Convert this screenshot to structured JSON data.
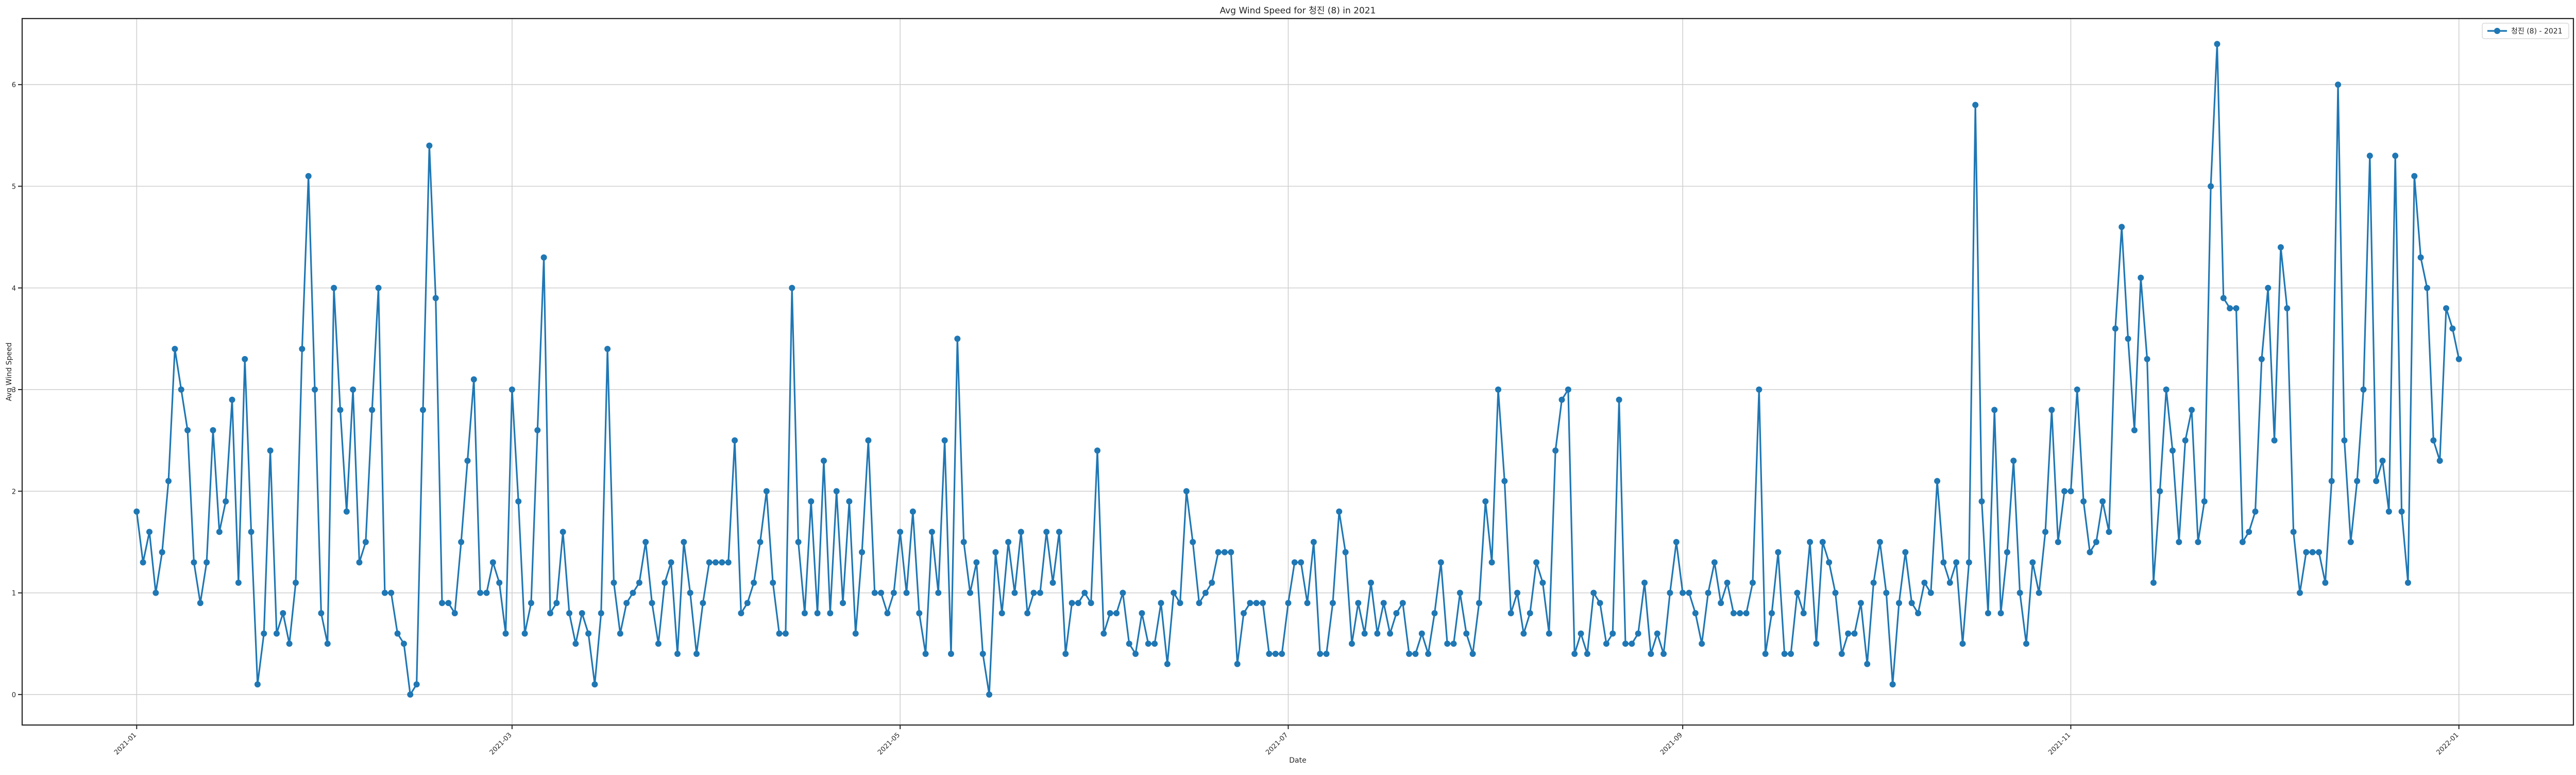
{
  "chart_data": {
    "type": "line",
    "title": "Avg Wind Speed for 청진 (8) in 2021",
    "xlabel": "Date",
    "ylabel": "Avg Wind Speed",
    "grid": true,
    "legend_position": "top-right",
    "x_start": "2021-01-01",
    "x_step_days": 1,
    "xlim": [
      "2020-12-14",
      "2022-01-19"
    ],
    "ylim": [
      -0.3,
      6.65
    ],
    "x_ticks": [
      "2021-01",
      "2021-03",
      "2021-05",
      "2021-07",
      "2021-09",
      "2021-11",
      "2022-01"
    ],
    "y_ticks": [
      "0",
      "1",
      "2",
      "3",
      "4",
      "5",
      "6"
    ],
    "series": [
      {
        "name": "청진 (8) - 2021",
        "color": "#1f77b4",
        "marker": "circle",
        "values": [
          1.8,
          1.3,
          1.6,
          1.0,
          1.4,
          2.1,
          3.4,
          3.0,
          2.6,
          1.3,
          0.9,
          1.3,
          2.6,
          1.6,
          1.9,
          2.9,
          1.1,
          3.3,
          1.6,
          0.1,
          0.6,
          2.4,
          0.6,
          0.8,
          0.5,
          1.1,
          3.4,
          5.1,
          3.0,
          0.8,
          0.5,
          4.0,
          2.8,
          1.8,
          3.0,
          1.3,
          1.5,
          2.8,
          4.0,
          1.0,
          1.0,
          0.6,
          0.5,
          0.0,
          0.1,
          2.8,
          5.4,
          3.9,
          0.9,
          0.9,
          0.8,
          1.5,
          2.3,
          3.1,
          1.0,
          1.0,
          1.3,
          1.1,
          0.6,
          3.0,
          1.9,
          0.6,
          0.9,
          2.6,
          4.3,
          0.8,
          0.9,
          1.6,
          0.8,
          0.5,
          0.8,
          0.6,
          0.1,
          0.8,
          3.4,
          1.1,
          0.6,
          0.9,
          1.0,
          1.1,
          1.5,
          0.9,
          0.5,
          1.1,
          1.3,
          0.4,
          1.5,
          1.0,
          0.4,
          0.9,
          1.3,
          1.3,
          1.3,
          1.3,
          2.5,
          0.8,
          0.9,
          1.1,
          1.5,
          2.0,
          1.1,
          0.6,
          0.6,
          4.0,
          1.5,
          0.8,
          1.9,
          0.8,
          2.3,
          0.8,
          2.0,
          0.9,
          1.9,
          0.6,
          1.4,
          2.5,
          1.0,
          1.0,
          0.8,
          1.0,
          1.6,
          1.0,
          1.8,
          0.8,
          0.4,
          1.6,
          1.0,
          2.5,
          0.4,
          3.5,
          1.5,
          1.0,
          1.3,
          0.4,
          0.0,
          1.4,
          0.8,
          1.5,
          1.0,
          1.6,
          0.8,
          1.0,
          1.0,
          1.6,
          1.1,
          1.6,
          0.4,
          0.9,
          0.9,
          1.0,
          0.9,
          2.4,
          0.6,
          0.8,
          0.8,
          1.0,
          0.5,
          0.4,
          0.8,
          0.5,
          0.5,
          0.9,
          0.3,
          1.0,
          0.9,
          2.0,
          1.5,
          0.9,
          1.0,
          1.1,
          1.4,
          1.4,
          1.4,
          0.3,
          0.8,
          0.9,
          0.9,
          0.9,
          0.4,
          0.4,
          0.4,
          0.9,
          1.3,
          1.3,
          0.9,
          1.5,
          0.4,
          0.4,
          0.9,
          1.8,
          1.4,
          0.5,
          0.9,
          0.6,
          1.1,
          0.6,
          0.9,
          0.6,
          0.8,
          0.9,
          0.4,
          0.4,
          0.6,
          0.4,
          0.8,
          1.3,
          0.5,
          0.5,
          1.0,
          0.6,
          0.4,
          0.9,
          1.9,
          1.3,
          3.0,
          2.1,
          0.8,
          1.0,
          0.6,
          0.8,
          1.3,
          1.1,
          0.6,
          2.4,
          2.9,
          3.0,
          0.4,
          0.6,
          0.4,
          1.0,
          0.9,
          0.5,
          0.6,
          2.9,
          0.5,
          0.5,
          0.6,
          1.1,
          0.4,
          0.6,
          0.4,
          1.0,
          1.5,
          1.0,
          1.0,
          0.8,
          0.5,
          1.0,
          1.3,
          0.9,
          1.1,
          0.8,
          0.8,
          0.8,
          1.1,
          3.0,
          0.4,
          0.8,
          1.4,
          0.4,
          0.4,
          1.0,
          0.8,
          1.5,
          0.5,
          1.5,
          1.3,
          1.0,
          0.4,
          0.6,
          0.6,
          0.9,
          0.3,
          1.1,
          1.5,
          1.0,
          0.1,
          0.9,
          1.4,
          0.9,
          0.8,
          1.1,
          1.0,
          2.1,
          1.3,
          1.1,
          1.3,
          0.5,
          1.3,
          5.8,
          1.9,
          0.8,
          2.8,
          0.8,
          1.4,
          2.3,
          1.0,
          0.5,
          1.3,
          1.0,
          1.6,
          2.8,
          1.5,
          2.0,
          2.0,
          3.0,
          1.9,
          1.4,
          1.5,
          1.9,
          1.6,
          3.6,
          4.6,
          3.5,
          2.6,
          4.1,
          3.3,
          1.1,
          2.0,
          3.0,
          2.4,
          1.5,
          2.5,
          2.8,
          1.5,
          1.9,
          5.0,
          6.4,
          3.9,
          3.8,
          3.8,
          1.5,
          1.6,
          1.8,
          3.3,
          4.0,
          2.5,
          4.4,
          3.8,
          1.6,
          1.0,
          1.4,
          1.4,
          1.4,
          1.1,
          2.1,
          6.0,
          2.5,
          1.5,
          2.1,
          3.0,
          5.3,
          2.1,
          2.3,
          1.8,
          5.3,
          1.8,
          1.1,
          5.1,
          4.3,
          4.0,
          2.5,
          2.3,
          3.8,
          3.6,
          3.3
        ]
      }
    ]
  }
}
